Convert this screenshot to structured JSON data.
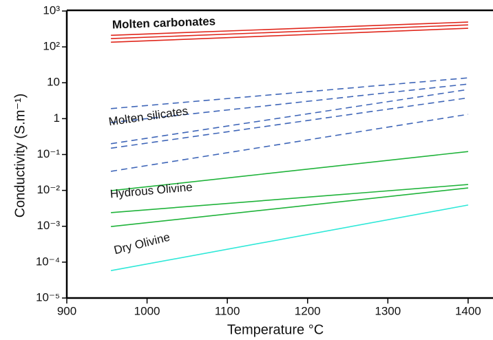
{
  "chart_data": {
    "type": "line",
    "xlabel": "Temperature °C",
    "ylabel": "Conductivity (S.m⁻¹)",
    "x": [
      955,
      1400
    ],
    "xlim": [
      900,
      1431
    ],
    "xticks": [
      900,
      1000,
      1100,
      1200,
      1300,
      1400
    ],
    "ylim": [
      1e-05,
      1000
    ],
    "log_y": true,
    "yticks": [
      {
        "value": 1000,
        "label": "10³"
      },
      {
        "value": 100,
        "label": "10²"
      },
      10,
      1,
      {
        "value": 0.1,
        "label": "10⁻¹"
      },
      {
        "value": 0.01,
        "label": "10⁻²"
      },
      {
        "value": 0.001,
        "label": "10⁻³"
      },
      {
        "value": 0.0001,
        "label": "10⁻⁴"
      },
      {
        "value": 1e-05,
        "label": "10⁻⁵"
      }
    ],
    "series": [
      {
        "color": "#e0261b",
        "dashed": false,
        "values": [
          210,
          490
        ]
      },
      {
        "color": "#e0261b",
        "dashed": false,
        "values": [
          170,
          410
        ]
      },
      {
        "color": "#e0261b",
        "dashed": false,
        "values": [
          135,
          330
        ]
      },
      {
        "color": "#3f66b8",
        "dashed": true,
        "values": [
          1.9,
          13.7
        ]
      },
      {
        "color": "#3f66b8",
        "dashed": true,
        "values": [
          0.78,
          9.2
        ]
      },
      {
        "color": "#3f66b8",
        "dashed": true,
        "values": [
          0.2,
          6.5
        ]
      },
      {
        "color": "#3f66b8",
        "dashed": true,
        "values": [
          0.15,
          3.8
        ]
      },
      {
        "color": "#3f66b8",
        "dashed": true,
        "values": [
          0.034,
          1.32
        ]
      },
      {
        "color": "#1fb33a",
        "dashed": false,
        "values": [
          0.0098,
          0.121
        ]
      },
      {
        "color": "#1fb33a",
        "dashed": false,
        "values": [
          0.0024,
          0.0146
        ]
      },
      {
        "color": "#1fb33a",
        "dashed": false,
        "values": [
          0.00098,
          0.0117
        ]
      },
      {
        "color": "#2ee8d8",
        "dashed": false,
        "values": [
          5.8e-05,
          0.0039
        ]
      }
    ],
    "annotations": [
      "Molten carbonates",
      "Molten silicates",
      "Hydrous Olivine",
      "Dry Olivine"
    ]
  }
}
